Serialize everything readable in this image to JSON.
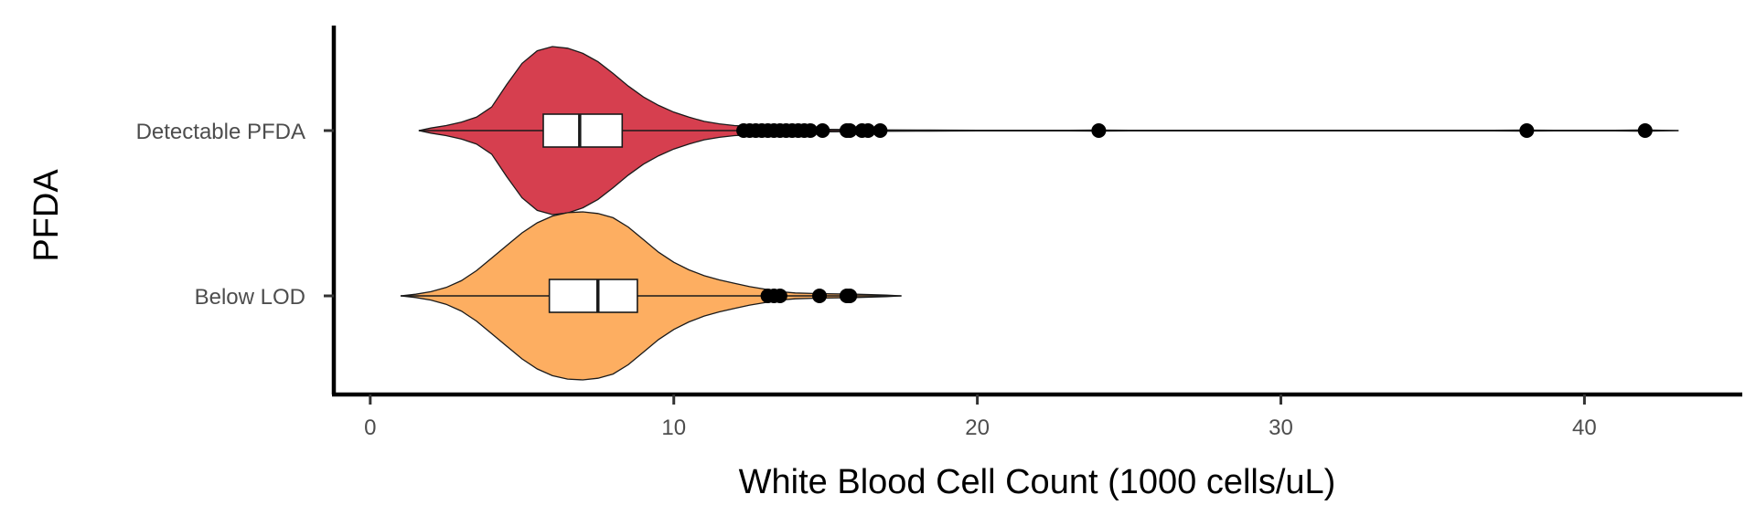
{
  "chart_data": {
    "type": "violin",
    "title": "",
    "xlabel": "White Blood Cell Count (1000 cells/uL)",
    "ylabel": "PFDA",
    "xlim": [
      -1.2,
      45.2
    ],
    "x_ticks": [
      0,
      10,
      20,
      30,
      40
    ],
    "grid": false,
    "legend": "none",
    "categories": [
      "Detectable PFDA",
      "Below LOD"
    ],
    "groups": [
      {
        "label": "Detectable PFDA",
        "color": "#d63f4f",
        "box": {
          "q1": 5.7,
          "median": 6.9,
          "q3": 8.3
        },
        "whiskers": [
          1.6,
          12.2
        ],
        "range": [
          1.6,
          43.1
        ],
        "density": [
          [
            1.6,
            0.0
          ],
          [
            2.0,
            0.03
          ],
          [
            2.5,
            0.06
          ],
          [
            3.0,
            0.1
          ],
          [
            3.5,
            0.16
          ],
          [
            4.0,
            0.28
          ],
          [
            4.5,
            0.55
          ],
          [
            5.0,
            0.8
          ],
          [
            5.5,
            0.95
          ],
          [
            6.0,
            1.0
          ],
          [
            6.5,
            0.98
          ],
          [
            7.0,
            0.92
          ],
          [
            7.5,
            0.82
          ],
          [
            8.0,
            0.68
          ],
          [
            8.5,
            0.53
          ],
          [
            9.0,
            0.4
          ],
          [
            9.5,
            0.3
          ],
          [
            10.0,
            0.22
          ],
          [
            10.5,
            0.16
          ],
          [
            11.0,
            0.11
          ],
          [
            11.5,
            0.08
          ],
          [
            12.0,
            0.06
          ],
          [
            13.0,
            0.04
          ],
          [
            14.0,
            0.025
          ],
          [
            15.0,
            0.015
          ],
          [
            16.0,
            0.012
          ],
          [
            17.0,
            0.008
          ],
          [
            18.0,
            0.006
          ],
          [
            20.0,
            0.004
          ],
          [
            23.0,
            0.004
          ],
          [
            24.0,
            0.007
          ],
          [
            25.0,
            0.004
          ],
          [
            30.0,
            0.003
          ],
          [
            37.0,
            0.003
          ],
          [
            38.0,
            0.007
          ],
          [
            39.0,
            0.004
          ],
          [
            41.0,
            0.004
          ],
          [
            42.0,
            0.008
          ],
          [
            43.1,
            0.0
          ]
        ],
        "outliers": [
          12.3,
          12.5,
          12.7,
          12.9,
          13.1,
          13.3,
          13.5,
          13.7,
          13.9,
          14.1,
          14.3,
          14.5,
          14.9,
          15.7,
          15.8,
          16.2,
          16.4,
          16.8,
          24.0,
          38.1,
          42.0
        ]
      },
      {
        "label": "Below LOD",
        "color": "#fdae61",
        "box": {
          "q1": 5.9,
          "median": 7.5,
          "q3": 8.8
        },
        "whiskers": [
          1.0,
          13.0
        ],
        "range": [
          1.0,
          17.5
        ],
        "density": [
          [
            1.0,
            0.0
          ],
          [
            1.5,
            0.02
          ],
          [
            2.0,
            0.05
          ],
          [
            2.5,
            0.1
          ],
          [
            3.0,
            0.18
          ],
          [
            3.5,
            0.3
          ],
          [
            4.0,
            0.45
          ],
          [
            4.5,
            0.6
          ],
          [
            5.0,
            0.75
          ],
          [
            5.5,
            0.87
          ],
          [
            6.0,
            0.95
          ],
          [
            6.5,
            0.99
          ],
          [
            7.0,
            1.0
          ],
          [
            7.5,
            0.98
          ],
          [
            8.0,
            0.93
          ],
          [
            8.5,
            0.82
          ],
          [
            9.0,
            0.67
          ],
          [
            9.5,
            0.52
          ],
          [
            10.0,
            0.4
          ],
          [
            10.5,
            0.31
          ],
          [
            11.0,
            0.24
          ],
          [
            11.5,
            0.19
          ],
          [
            12.0,
            0.15
          ],
          [
            12.5,
            0.11
          ],
          [
            13.0,
            0.08
          ],
          [
            13.5,
            0.05
          ],
          [
            14.0,
            0.035
          ],
          [
            15.0,
            0.025
          ],
          [
            16.0,
            0.02
          ],
          [
            17.0,
            0.01
          ],
          [
            17.5,
            0.0
          ]
        ],
        "outliers": [
          13.1,
          13.3,
          13.5,
          14.8,
          15.7,
          15.8
        ]
      }
    ]
  }
}
